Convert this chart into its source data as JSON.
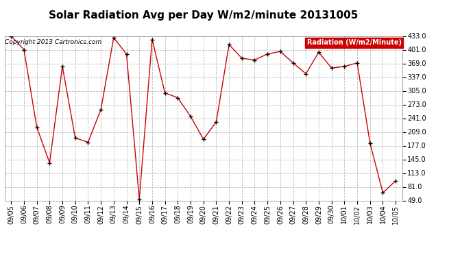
{
  "title": "Solar Radiation Avg per Day W/m2/minute 20131005",
  "copyright": "Copyright 2013 Cartronics.com",
  "legend_label": "Radiation (W/m2/Minute)",
  "dates": [
    "09/05",
    "09/06",
    "09/07",
    "09/08",
    "09/09",
    "09/10",
    "09/11",
    "09/12",
    "09/13",
    "09/14",
    "09/15",
    "09/16",
    "09/17",
    "09/18",
    "09/19",
    "09/20",
    "09/21",
    "09/22",
    "09/23",
    "09/24",
    "09/25",
    "09/26",
    "09/27",
    "09/28",
    "09/29",
    "09/30",
    "10/01",
    "10/02",
    "10/03",
    "10/04",
    "10/05"
  ],
  "values": [
    433,
    401,
    220,
    137,
    362,
    195,
    185,
    261,
    429,
    391,
    52,
    425,
    300,
    289,
    245,
    192,
    232,
    413,
    381,
    377,
    391,
    397,
    370,
    345,
    395,
    358,
    362,
    370,
    183,
    67,
    95
  ],
  "line_color": "#cc0000",
  "marker_color": "#000000",
  "background_color": "#ffffff",
  "plot_bg_color": "#ffffff",
  "grid_color": "#bbbbbb",
  "legend_bg": "#cc0000",
  "legend_text_color": "#ffffff",
  "ylim": [
    49.0,
    433.0
  ],
  "yticks": [
    49.0,
    81.0,
    113.0,
    145.0,
    177.0,
    209.0,
    241.0,
    273.0,
    305.0,
    337.0,
    369.0,
    401.0,
    433.0
  ],
  "title_fontsize": 11,
  "copyright_fontsize": 6.5,
  "legend_fontsize": 7,
  "tick_fontsize": 7
}
